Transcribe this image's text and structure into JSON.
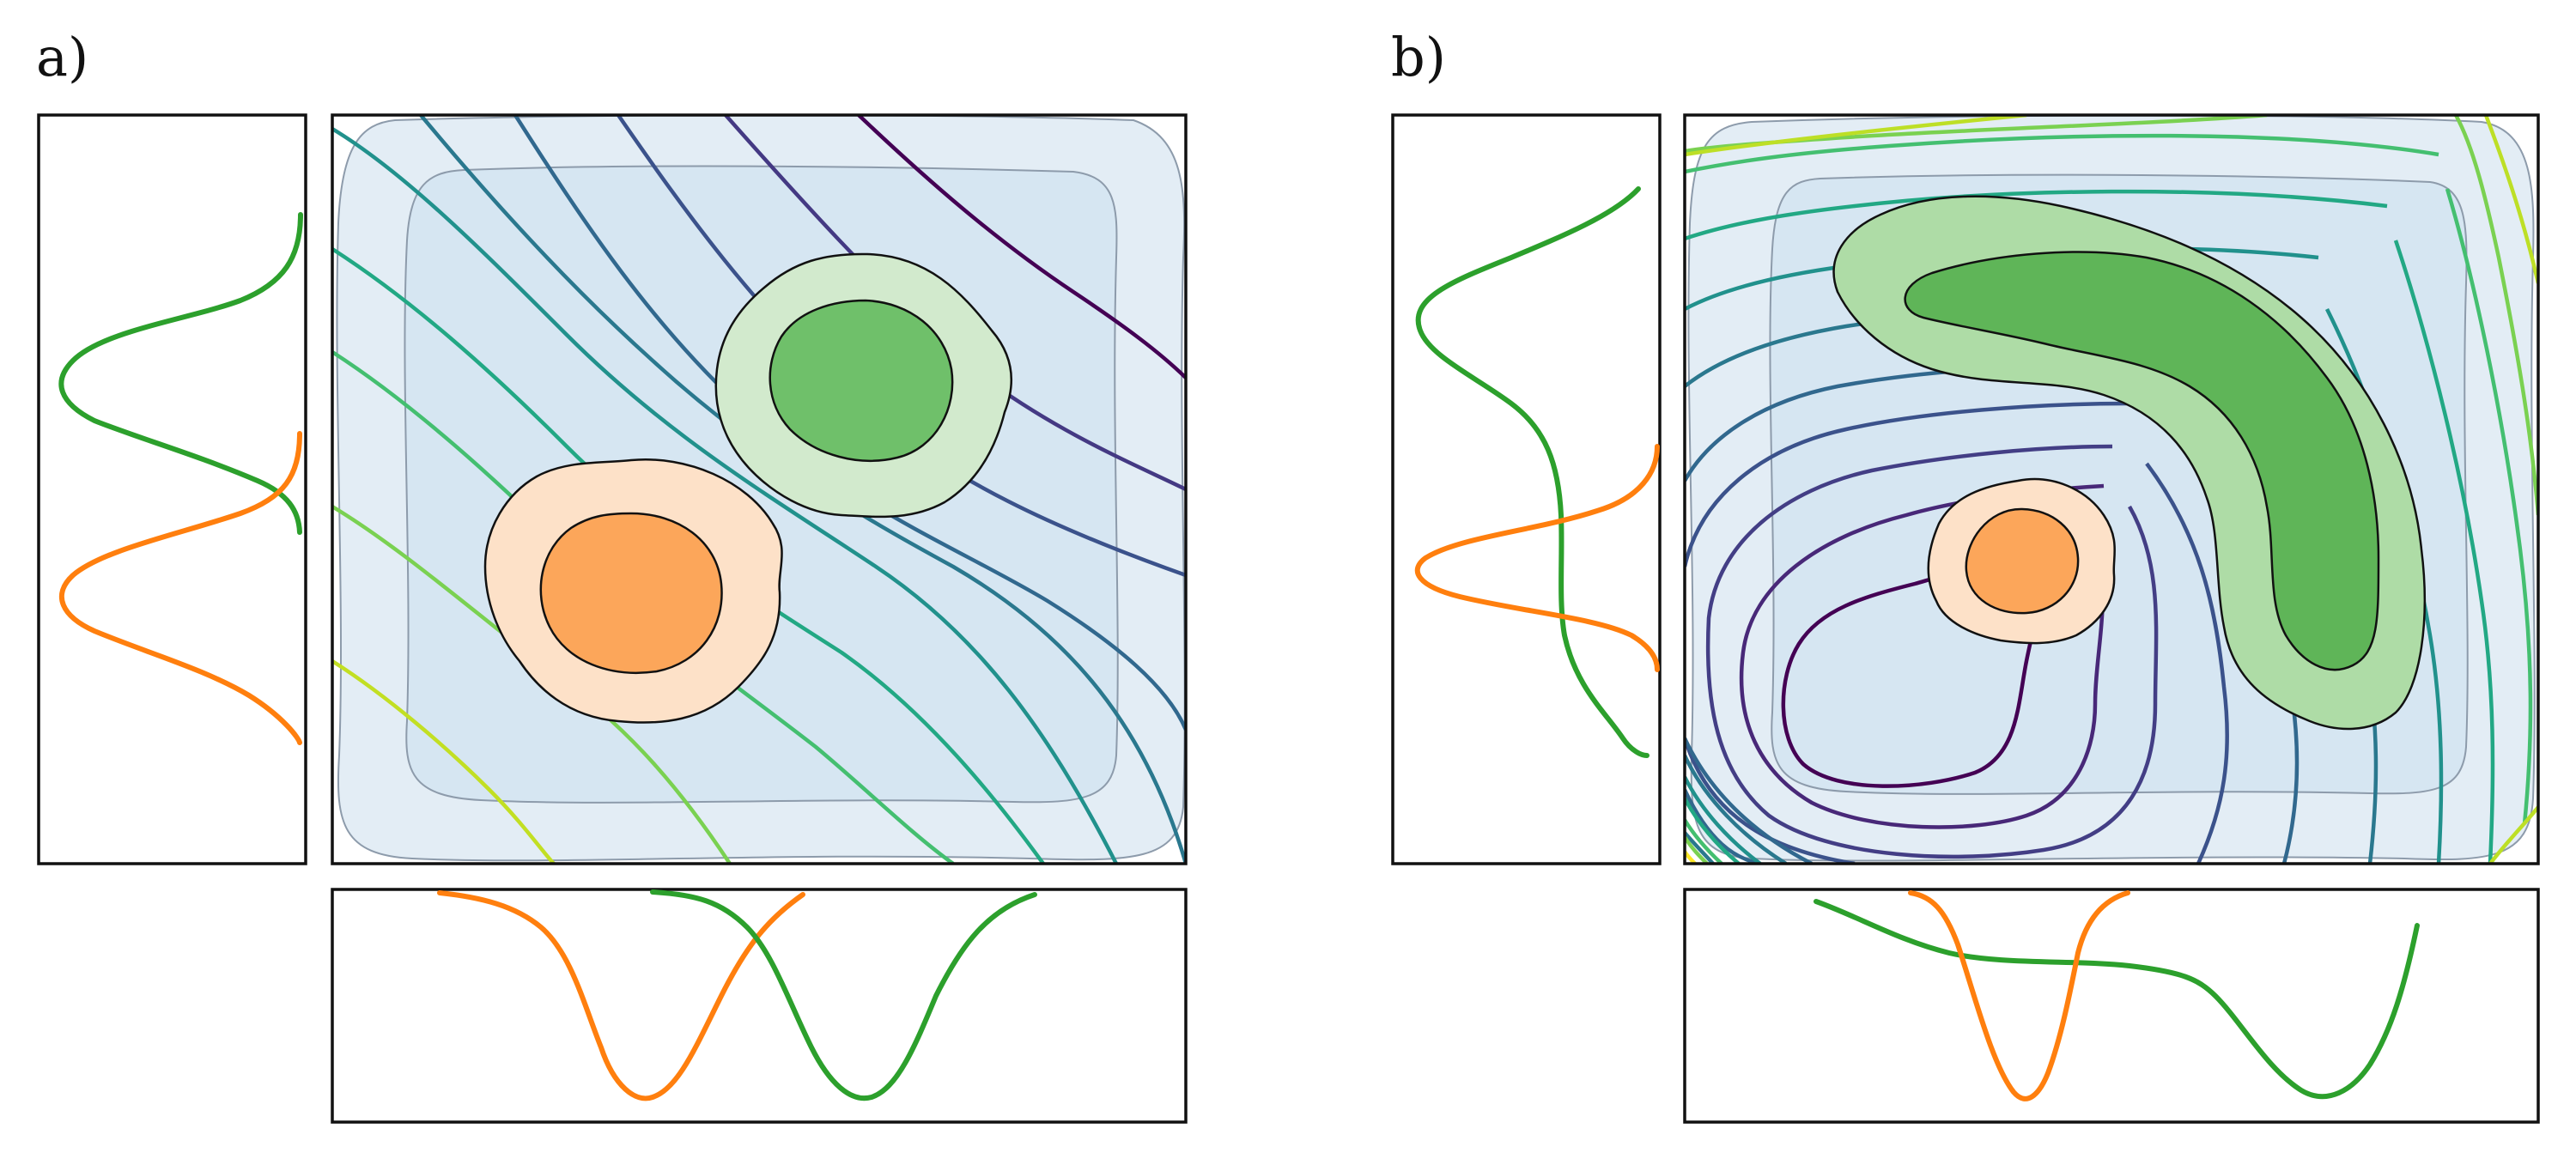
{
  "panels": [
    {
      "label": "a)"
    },
    {
      "label": "b)"
    }
  ],
  "colors": {
    "density_outer": "#e3edf5",
    "density_inner": "#d6e6f2",
    "orange_light": "#fde1c8",
    "orange_dark": "#fca65a",
    "green_light": "#d2eacd",
    "green_dark": "#6fc06a",
    "green_light_b": "#aedca6",
    "green_dark_b": "#5fb558",
    "orange_curve": "#ff7f0e",
    "green_curve": "#2ca02c",
    "viridis": [
      "#440154",
      "#443983",
      "#31688e",
      "#21918c",
      "#35b779",
      "#6ece58",
      "#b5de2b",
      "#fde725"
    ]
  }
}
